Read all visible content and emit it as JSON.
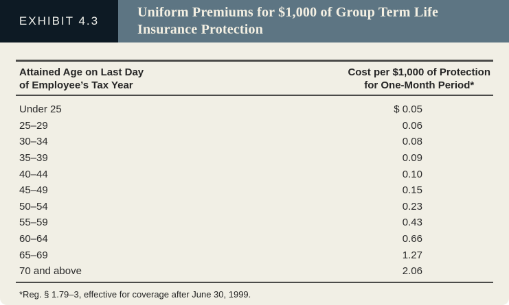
{
  "exhibit": {
    "label": "EXHIBIT 4.3",
    "title_line1": "Uniform Premiums for $1,000 of Group Term Life",
    "title_line2": "Insurance Protection"
  },
  "table": {
    "col1_header_line1": "Attained Age on Last Day",
    "col1_header_line2": "of Employee’s Tax Year",
    "col2_header_line1": "Cost per $1,000 of Protection",
    "col2_header_line2": "for One-Month Period*",
    "rows": [
      {
        "age": "Under 25",
        "cost": "$ 0.05"
      },
      {
        "age": "25–29",
        "cost": "0.06"
      },
      {
        "age": "30–34",
        "cost": "0.08"
      },
      {
        "age": "35–39",
        "cost": "0.09"
      },
      {
        "age": "40–44",
        "cost": "0.10"
      },
      {
        "age": "45–49",
        "cost": "0.15"
      },
      {
        "age": "50–54",
        "cost": "0.23"
      },
      {
        "age": "55–59",
        "cost": "0.43"
      },
      {
        "age": "60–64",
        "cost": "0.66"
      },
      {
        "age": "65–69",
        "cost": "1.27"
      },
      {
        "age": "70 and above",
        "cost": "2.06"
      }
    ]
  },
  "footnote": "*Reg. § 1.79–3, effective for coverage after June 30, 1999.",
  "colors": {
    "badge_bg": "#0d1a24",
    "titlebar_bg": "#5d7583",
    "card_bg": "#f1efe5",
    "rule": "#4b4b49",
    "text": "#2a2a2a"
  }
}
